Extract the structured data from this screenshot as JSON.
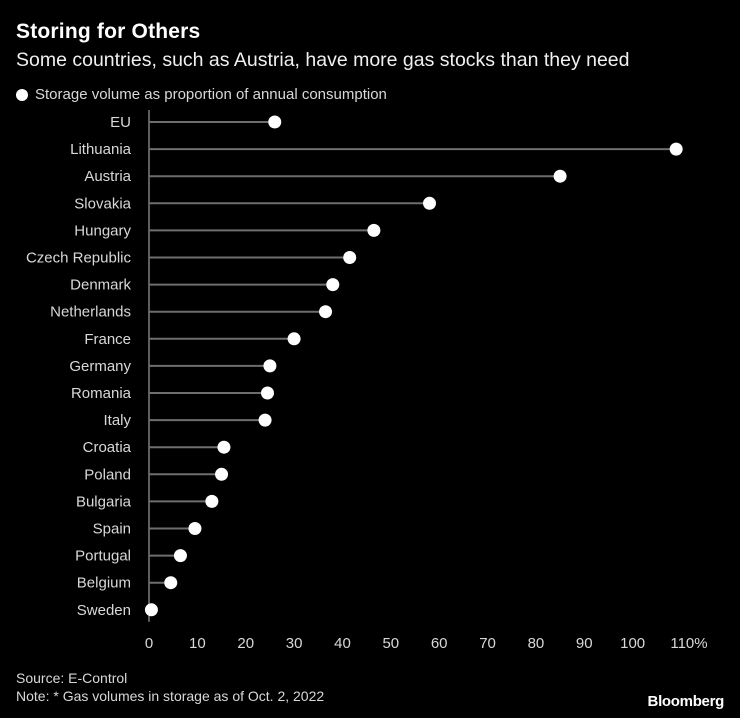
{
  "title": "Storing for Others",
  "subtitle": "Some countries, such as Austria, have more gas stocks than they need",
  "legend": {
    "label": "Storage volume as proportion of annual consumption"
  },
  "colors": {
    "background": "#000000",
    "dot": "#ffffff",
    "stem": "#6e6e6e",
    "axis": "#bdbdbd",
    "text": "#d8d8d8"
  },
  "chart_data": {
    "type": "lollipop",
    "orientation": "horizontal",
    "categories": [
      "EU",
      "Lithuania",
      "Austria",
      "Slovakia",
      "Hungary",
      "Czech Republic",
      "Denmark",
      "Netherlands",
      "France",
      "Germany",
      "Romania",
      "Italy",
      "Croatia",
      "Poland",
      "Bulgaria",
      "Spain",
      "Portugal",
      "Belgium",
      "Sweden"
    ],
    "series": [
      {
        "name": "Storage volume as proportion of annual consumption",
        "values": [
          26,
          109,
          85,
          58,
          46.5,
          41.5,
          38,
          36.5,
          30,
          25,
          24.5,
          24,
          15.5,
          15,
          13,
          9.5,
          6.5,
          4.5,
          0.5
        ]
      }
    ],
    "xlim": [
      0,
      110
    ],
    "xticks": [
      "0",
      "10",
      "20",
      "30",
      "40",
      "50",
      "60",
      "70",
      "80",
      "90",
      "100",
      "110%"
    ],
    "grid": false,
    "legend_position": "top-left"
  },
  "footer": {
    "source": "Source: E-Control",
    "note": "Note: * Gas volumes in storage as of Oct. 2, 2022",
    "brand": "Bloomberg"
  }
}
